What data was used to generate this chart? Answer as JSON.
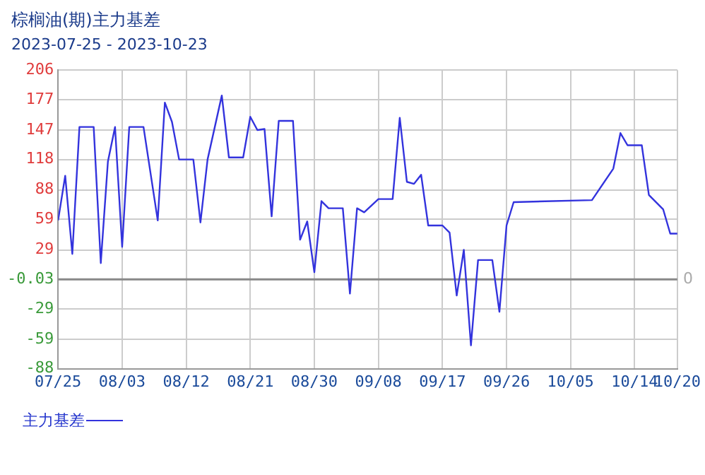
{
  "chart_data": {
    "type": "line",
    "title": "棕榈油(期)主力基差",
    "subtitle": "2023-07-25 - 2023-10-23",
    "x": [
      "2023-07-25",
      "2023-07-26",
      "2023-07-27",
      "2023-07-28",
      "2023-07-30",
      "2023-07-31",
      "2023-08-01",
      "2023-08-02",
      "2023-08-03",
      "2023-08-04",
      "2023-08-06",
      "2023-08-08",
      "2023-08-09",
      "2023-08-10",
      "2023-08-11",
      "2023-08-13",
      "2023-08-14",
      "2023-08-15",
      "2023-08-17",
      "2023-08-18",
      "2023-08-20",
      "2023-08-21",
      "2023-08-22",
      "2023-08-23",
      "2023-08-24",
      "2023-08-25",
      "2023-08-27",
      "2023-08-28",
      "2023-08-29",
      "2023-08-30",
      "2023-08-31",
      "2023-09-01",
      "2023-09-03",
      "2023-09-04",
      "2023-09-05",
      "2023-09-06",
      "2023-09-08",
      "2023-09-10",
      "2023-09-11",
      "2023-09-12",
      "2023-09-13",
      "2023-09-14",
      "2023-09-15",
      "2023-09-17",
      "2023-09-18",
      "2023-09-19",
      "2023-09-20",
      "2023-09-21",
      "2023-09-22",
      "2023-09-24",
      "2023-09-25",
      "2023-09-26",
      "2023-09-27",
      "2023-10-08",
      "2023-10-11",
      "2023-10-12",
      "2023-10-13",
      "2023-10-15",
      "2023-10-16",
      "2023-10-18",
      "2023-10-19",
      "2023-10-20"
    ],
    "series": [
      {
        "name": "主力基差",
        "color": "#3333dd",
        "values": [
          58,
          102,
          25,
          150,
          150,
          16,
          116,
          150,
          32,
          150,
          150,
          58,
          174,
          155,
          118,
          118,
          56,
          118,
          181,
          120,
          120,
          160,
          147,
          148,
          62,
          156,
          156,
          39,
          57,
          7,
          77,
          70,
          70,
          -14,
          70,
          66,
          79,
          79,
          159,
          96,
          94,
          103,
          53,
          53,
          46,
          -16,
          29,
          -65,
          19,
          19,
          -32,
          53,
          76,
          78,
          109,
          144,
          132,
          132,
          83,
          69,
          45,
          45
        ]
      }
    ],
    "xlim": [
      "2023-07-25",
      "2023-10-20"
    ],
    "xticks": [
      {
        "value": "2023-07-25",
        "label": "07/25"
      },
      {
        "value": "2023-08-03",
        "label": "08/03"
      },
      {
        "value": "2023-08-12",
        "label": "08/12"
      },
      {
        "value": "2023-08-21",
        "label": "08/21"
      },
      {
        "value": "2023-08-30",
        "label": "08/30"
      },
      {
        "value": "2023-09-08",
        "label": "09/08"
      },
      {
        "value": "2023-09-17",
        "label": "09/17"
      },
      {
        "value": "2023-09-26",
        "label": "09/26"
      },
      {
        "value": "2023-10-05",
        "label": "10/05"
      },
      {
        "value": "2023-10-14",
        "label": "10/14"
      },
      {
        "value": "2023-10-20",
        "label": "10/20"
      }
    ],
    "ylim": [
      -88,
      206
    ],
    "yticks": [
      -88,
      -59,
      -29,
      -0.03,
      29,
      59,
      88,
      118,
      147,
      177,
      206
    ],
    "ref_lines": [
      {
        "axis": "y",
        "value": 0,
        "label": "0",
        "color": "#888888"
      }
    ],
    "grid": true,
    "legend": "bottom left",
    "marker": "none",
    "line_style": "solid"
  }
}
